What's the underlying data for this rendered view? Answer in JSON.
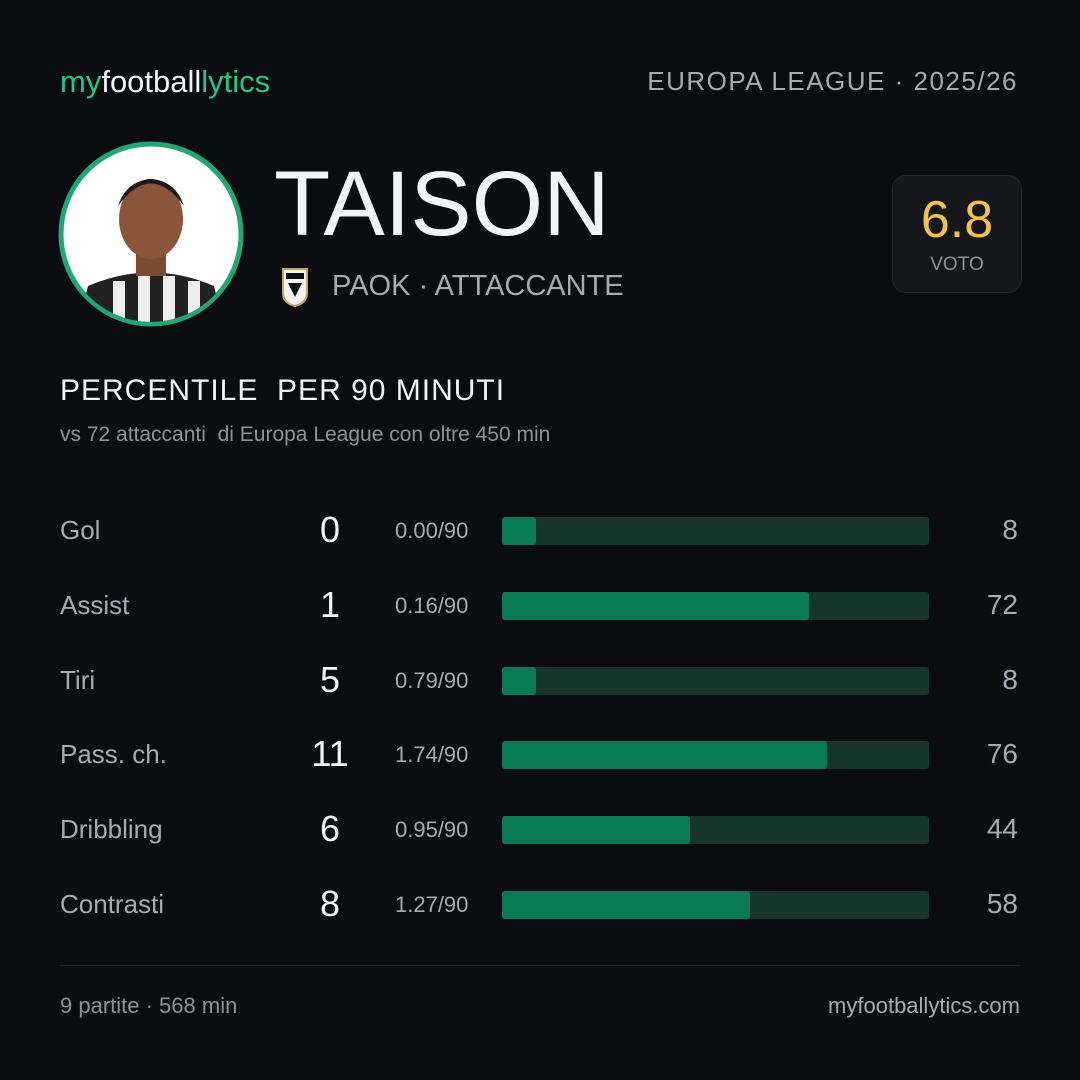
{
  "header": {
    "brand": [
      "my",
      "football",
      "lytics"
    ],
    "competition": "EUROPA LEAGUE · 2025/26"
  },
  "player": {
    "name": "TAISON",
    "team": "PAOK · ATTACCANTE",
    "rating": 6.8,
    "rating_label": "VOTO"
  },
  "section": {
    "title": "PERCENTILE  PER 90 MINUTI",
    "subtitle": "vs 72 attaccanti  di Europa League con oltre 450 min"
  },
  "stats": {
    "xlim": [
      0,
      100
    ],
    "rows": [
      {
        "label": "Gol",
        "total": 0,
        "per90": "0.00/90",
        "percentile": 8
      },
      {
        "label": "Assist",
        "total": 1,
        "per90": "0.16/90",
        "percentile": 72
      },
      {
        "label": "Tiri",
        "total": 5,
        "per90": "0.79/90",
        "percentile": 8
      },
      {
        "label": "Pass. ch.",
        "total": 11,
        "per90": "1.74/90",
        "percentile": 76
      },
      {
        "label": "Dribbling",
        "total": 6,
        "per90": "0.95/90",
        "percentile": 44
      },
      {
        "label": "Contrasti",
        "total": 8,
        "per90": "1.27/90",
        "percentile": 58
      }
    ]
  },
  "footer": {
    "matches": "9 partite · 568 min",
    "site": "myfootballytics.com"
  }
}
